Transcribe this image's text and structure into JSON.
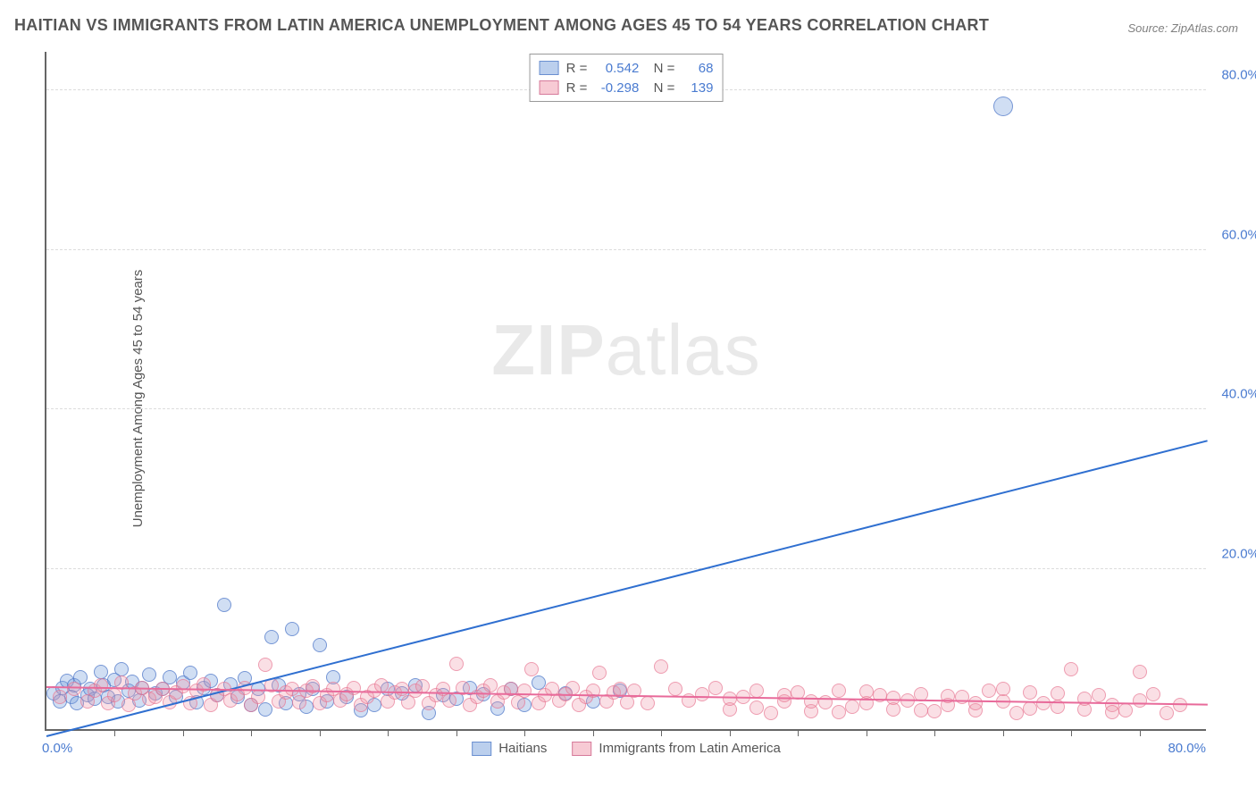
{
  "title": "HAITIAN VS IMMIGRANTS FROM LATIN AMERICA UNEMPLOYMENT AMONG AGES 45 TO 54 YEARS CORRELATION CHART",
  "source": "Source: ZipAtlas.com",
  "ylabel": "Unemployment Among Ages 45 to 54 years",
  "watermark_bold": "ZIP",
  "watermark_rest": "atlas",
  "chart": {
    "type": "scatter",
    "xlim": [
      0,
      85
    ],
    "ylim": [
      0,
      85
    ],
    "yticks": [
      20,
      40,
      60,
      80
    ],
    "ytick_labels": [
      "20.0%",
      "40.0%",
      "60.0%",
      "80.0%"
    ],
    "xtick_minor_step": 5,
    "x_origin_label": "0.0%",
    "x_max_label": "80.0%",
    "background_color": "#ffffff",
    "grid_color": "#dcdcdc",
    "marker_radius": 8,
    "outlier_radius": 11,
    "series": [
      {
        "name": "Haitians",
        "color_fill": "rgba(120,160,220,0.35)",
        "color_stroke": "rgba(80,120,200,0.7)",
        "R": "0.542",
        "N": "68",
        "regression": {
          "x1": 0,
          "y1": -1,
          "x2": 85,
          "y2": 36
        },
        "points": [
          [
            0.5,
            4.5
          ],
          [
            1,
            3.5
          ],
          [
            1.2,
            5.2
          ],
          [
            1.5,
            6
          ],
          [
            1.8,
            4
          ],
          [
            2,
            5.5
          ],
          [
            2.2,
            3.2
          ],
          [
            2.5,
            6.5
          ],
          [
            3,
            4.2
          ],
          [
            3.2,
            5
          ],
          [
            3.5,
            3.8
          ],
          [
            4,
            7.2
          ],
          [
            4.2,
            5.5
          ],
          [
            4.5,
            4
          ],
          [
            5,
            6.2
          ],
          [
            5.2,
            3.5
          ],
          [
            5.5,
            7.5
          ],
          [
            6,
            4.8
          ],
          [
            6.3,
            5.9
          ],
          [
            6.8,
            3.6
          ],
          [
            7,
            5.2
          ],
          [
            7.5,
            6.8
          ],
          [
            8,
            4.5
          ],
          [
            8.5,
            5.0
          ],
          [
            9,
            6.5
          ],
          [
            9.5,
            4.0
          ],
          [
            10,
            5.8
          ],
          [
            10.5,
            7.0
          ],
          [
            11,
            3.4
          ],
          [
            11.5,
            5.2
          ],
          [
            12,
            6.0
          ],
          [
            12.5,
            4.3
          ],
          [
            13,
            15.5
          ],
          [
            13.5,
            5.6
          ],
          [
            14,
            4.0
          ],
          [
            14.5,
            6.4
          ],
          [
            15,
            3.0
          ],
          [
            15.5,
            5.0
          ],
          [
            16,
            2.5
          ],
          [
            16.5,
            11.5
          ],
          [
            17,
            5.5
          ],
          [
            17.5,
            3.2
          ],
          [
            18,
            12.5
          ],
          [
            18.5,
            4.4
          ],
          [
            19,
            2.8
          ],
          [
            19.5,
            5.0
          ],
          [
            20,
            10.5
          ],
          [
            20.5,
            3.5
          ],
          [
            21,
            6.5
          ],
          [
            22,
            4.0
          ],
          [
            23,
            2.3
          ],
          [
            24,
            3.0
          ],
          [
            25,
            5.0
          ],
          [
            26,
            4.5
          ],
          [
            27,
            5.5
          ],
          [
            28,
            2.0
          ],
          [
            29,
            4.2
          ],
          [
            30,
            3.8
          ],
          [
            31,
            5.1
          ],
          [
            32,
            4.4
          ],
          [
            33,
            2.6
          ],
          [
            34,
            5.0
          ],
          [
            35,
            3.0
          ],
          [
            36,
            5.8
          ],
          [
            38,
            4.5
          ],
          [
            40,
            3.5
          ],
          [
            42,
            4.8
          ],
          [
            70,
            78
          ]
        ]
      },
      {
        "name": "Immigrants from Latin America",
        "color_fill": "rgba(240,150,170,0.3)",
        "color_stroke": "rgba(230,110,140,0.6)",
        "R": "-0.298",
        "N": "139",
        "regression": {
          "x1": 0,
          "y1": 5.2,
          "x2": 85,
          "y2": 3.0
        },
        "points": [
          [
            1,
            4
          ],
          [
            2,
            5
          ],
          [
            3,
            3.5
          ],
          [
            3.5,
            4.8
          ],
          [
            4,
            5.5
          ],
          [
            4.5,
            3.2
          ],
          [
            5,
            4.2
          ],
          [
            5.5,
            5.8
          ],
          [
            6,
            3.0
          ],
          [
            6.5,
            4.5
          ],
          [
            7,
            5.2
          ],
          [
            7.5,
            3.8
          ],
          [
            8,
            4.0
          ],
          [
            8.5,
            5.0
          ],
          [
            9,
            3.4
          ],
          [
            9.5,
            4.6
          ],
          [
            10,
            5.4
          ],
          [
            10.5,
            3.2
          ],
          [
            11,
            4.8
          ],
          [
            11.5,
            5.6
          ],
          [
            12,
            3.0
          ],
          [
            12.5,
            4.2
          ],
          [
            13,
            5.0
          ],
          [
            13.5,
            3.6
          ],
          [
            14,
            4.4
          ],
          [
            14.5,
            5.2
          ],
          [
            15,
            3.0
          ],
          [
            15.5,
            4.0
          ],
          [
            16,
            8.0
          ],
          [
            16.5,
            5.5
          ],
          [
            17,
            3.5
          ],
          [
            17.5,
            4.6
          ],
          [
            18,
            5.0
          ],
          [
            18.5,
            3.4
          ],
          [
            19,
            4.8
          ],
          [
            19.5,
            5.4
          ],
          [
            20,
            3.2
          ],
          [
            20.5,
            4.2
          ],
          [
            21,
            5.0
          ],
          [
            21.5,
            3.6
          ],
          [
            22,
            4.4
          ],
          [
            22.5,
            5.2
          ],
          [
            23,
            3.0
          ],
          [
            23.5,
            4.0
          ],
          [
            24,
            4.8
          ],
          [
            24.5,
            5.5
          ],
          [
            25,
            3.5
          ],
          [
            25.5,
            4.6
          ],
          [
            26,
            5.0
          ],
          [
            26.5,
            3.4
          ],
          [
            27,
            4.8
          ],
          [
            27.5,
            5.4
          ],
          [
            28,
            3.2
          ],
          [
            28.5,
            4.2
          ],
          [
            29,
            5.0
          ],
          [
            29.5,
            3.6
          ],
          [
            30,
            8.2
          ],
          [
            30.5,
            5.2
          ],
          [
            31,
            3.0
          ],
          [
            31.5,
            4.0
          ],
          [
            32,
            4.8
          ],
          [
            32.5,
            5.5
          ],
          [
            33,
            3.5
          ],
          [
            33.5,
            4.6
          ],
          [
            34,
            5.0
          ],
          [
            34.5,
            3.4
          ],
          [
            35,
            4.8
          ],
          [
            35.5,
            7.5
          ],
          [
            36,
            3.2
          ],
          [
            36.5,
            4.2
          ],
          [
            37,
            5.0
          ],
          [
            37.5,
            3.6
          ],
          [
            38,
            4.4
          ],
          [
            38.5,
            5.2
          ],
          [
            39,
            3.0
          ],
          [
            39.5,
            4.0
          ],
          [
            40,
            4.8
          ],
          [
            40.5,
            7.0
          ],
          [
            41,
            3.5
          ],
          [
            41.5,
            4.6
          ],
          [
            42,
            5.0
          ],
          [
            42.5,
            3.4
          ],
          [
            43,
            4.8
          ],
          [
            44,
            3.2
          ],
          [
            45,
            7.8
          ],
          [
            46,
            5.0
          ],
          [
            47,
            3.6
          ],
          [
            48,
            4.4
          ],
          [
            49,
            5.2
          ],
          [
            50,
            2.5
          ],
          [
            51,
            4.0
          ],
          [
            52,
            4.8
          ],
          [
            53,
            2.0
          ],
          [
            54,
            3.5
          ],
          [
            55,
            4.6
          ],
          [
            56,
            2.2
          ],
          [
            57,
            3.4
          ],
          [
            58,
            4.8
          ],
          [
            59,
            2.8
          ],
          [
            60,
            3.2
          ],
          [
            61,
            4.2
          ],
          [
            62,
            2.5
          ],
          [
            63,
            3.6
          ],
          [
            64,
            4.4
          ],
          [
            65,
            2.2
          ],
          [
            66,
            3.0
          ],
          [
            67,
            4.0
          ],
          [
            68,
            2.4
          ],
          [
            69,
            4.8
          ],
          [
            70,
            3.5
          ],
          [
            71,
            2.0
          ],
          [
            72,
            4.6
          ],
          [
            73,
            3.2
          ],
          [
            74,
            2.8
          ],
          [
            75,
            7.5
          ],
          [
            76,
            2.5
          ],
          [
            77,
            4.2
          ],
          [
            78,
            3.0
          ],
          [
            79,
            2.3
          ],
          [
            80,
            3.6
          ],
          [
            81,
            4.4
          ],
          [
            82,
            2.0
          ],
          [
            83,
            3.0
          ],
          [
            80,
            7.2
          ],
          [
            78,
            2.1
          ],
          [
            76,
            3.8
          ],
          [
            74,
            4.5
          ],
          [
            72,
            2.6
          ],
          [
            70,
            5.0
          ],
          [
            68,
            3.3
          ],
          [
            66,
            4.1
          ],
          [
            64,
            2.4
          ],
          [
            62,
            3.9
          ],
          [
            60,
            4.7
          ],
          [
            58,
            2.1
          ],
          [
            56,
            3.5
          ],
          [
            54,
            4.3
          ],
          [
            52,
            2.7
          ],
          [
            50,
            3.8
          ]
        ]
      }
    ]
  },
  "legend": {
    "series1_label": "Haitians",
    "series2_label": "Immigrants from Latin America"
  }
}
